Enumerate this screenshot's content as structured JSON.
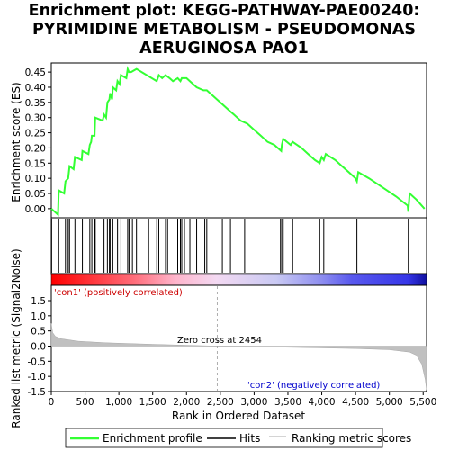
{
  "chart_data": {
    "type": "line",
    "title_lines": [
      "Enrichment plot: KEGG-PATHWAY-PAE00240:",
      "PYRIMIDINE METABOLISM - PSEUDOMONAS",
      "AERUGINOSA PAO1"
    ],
    "top_panel": {
      "ylabel": "Enrichment score (ES)",
      "ylim": [
        -0.03,
        0.48
      ],
      "yticks": [
        "0.45",
        "0.40",
        "0.35",
        "0.30",
        "0.25",
        "0.20",
        "0.15",
        "0.10",
        "0.05",
        "0.00"
      ],
      "ytick_values": [
        0.45,
        0.4,
        0.35,
        0.3,
        0.25,
        0.2,
        0.15,
        0.1,
        0.05,
        0.0
      ],
      "grid": false,
      "series": {
        "color": "#33ff33",
        "points": [
          [
            0,
            0.0
          ],
          [
            100,
            -0.02
          ],
          [
            110,
            0.06
          ],
          [
            190,
            0.05
          ],
          [
            210,
            0.09
          ],
          [
            250,
            0.1
          ],
          [
            270,
            0.14
          ],
          [
            330,
            0.13
          ],
          [
            350,
            0.17
          ],
          [
            450,
            0.16
          ],
          [
            460,
            0.19
          ],
          [
            550,
            0.18
          ],
          [
            570,
            0.21
          ],
          [
            590,
            0.22
          ],
          [
            600,
            0.24
          ],
          [
            640,
            0.24
          ],
          [
            650,
            0.3
          ],
          [
            760,
            0.29
          ],
          [
            780,
            0.31
          ],
          [
            810,
            0.3
          ],
          [
            830,
            0.35
          ],
          [
            860,
            0.36
          ],
          [
            870,
            0.38
          ],
          [
            900,
            0.36
          ],
          [
            910,
            0.4
          ],
          [
            960,
            0.39
          ],
          [
            980,
            0.42
          ],
          [
            1010,
            0.41
          ],
          [
            1030,
            0.44
          ],
          [
            1110,
            0.43
          ],
          [
            1130,
            0.46
          ],
          [
            1150,
            0.45
          ],
          [
            1180,
            0.45
          ],
          [
            1260,
            0.46
          ],
          [
            1560,
            0.42
          ],
          [
            1590,
            0.44
          ],
          [
            1640,
            0.43
          ],
          [
            1690,
            0.44
          ],
          [
            1750,
            0.43
          ],
          [
            1800,
            0.42
          ],
          [
            1870,
            0.43
          ],
          [
            1910,
            0.42
          ],
          [
            1930,
            0.43
          ],
          [
            2000,
            0.43
          ],
          [
            2050,
            0.42
          ],
          [
            2150,
            0.4
          ],
          [
            2250,
            0.39
          ],
          [
            2300,
            0.39
          ],
          [
            2450,
            0.36
          ],
          [
            2650,
            0.32
          ],
          [
            2700,
            0.31
          ],
          [
            2800,
            0.29
          ],
          [
            2900,
            0.28
          ],
          [
            3000,
            0.26
          ],
          [
            3100,
            0.24
          ],
          [
            3200,
            0.22
          ],
          [
            3300,
            0.21
          ],
          [
            3400,
            0.19
          ],
          [
            3410,
            0.21
          ],
          [
            3430,
            0.23
          ],
          [
            3540,
            0.21
          ],
          [
            3570,
            0.22
          ],
          [
            3700,
            0.2
          ],
          [
            3800,
            0.18
          ],
          [
            3900,
            0.16
          ],
          [
            3970,
            0.15
          ],
          [
            4000,
            0.17
          ],
          [
            4030,
            0.16
          ],
          [
            4060,
            0.18
          ],
          [
            4200,
            0.16
          ],
          [
            4300,
            0.14
          ],
          [
            4400,
            0.12
          ],
          [
            4500,
            0.1
          ],
          [
            4520,
            0.09
          ],
          [
            4540,
            0.12
          ],
          [
            4700,
            0.1
          ],
          [
            4900,
            0.07
          ],
          [
            5100,
            0.04
          ],
          [
            5270,
            0.01
          ],
          [
            5280,
            -0.01
          ],
          [
            5300,
            0.05
          ],
          [
            5400,
            0.03
          ],
          [
            5520,
            0.0
          ]
        ]
      }
    },
    "hits": [
      5,
      110,
      210,
      250,
      270,
      350,
      460,
      570,
      600,
      640,
      650,
      780,
      830,
      860,
      870,
      910,
      980,
      1030,
      1130,
      1150,
      1200,
      1260,
      1440,
      1560,
      1590,
      1690,
      1720,
      1870,
      1910,
      1930,
      1970,
      2050,
      2150,
      2270,
      2300,
      2530,
      2650,
      2860,
      3390,
      3410,
      3430,
      3570,
      3970,
      4030,
      4520,
      5280
    ],
    "rank_bar": {
      "left_label": "'con1' (positively correlated)",
      "right_label": "'con2' (negatively correlated)",
      "zero_cross_label": "Zero cross at 2454",
      "zero_cross": 2454
    },
    "bottom_panel": {
      "ylabel": "Ranked list metric (Signal2Noise)",
      "ylim": [
        -1.5,
        1.5
      ],
      "yticks": [
        "1.5",
        "1.0",
        "0.5",
        "0.0",
        "-0.5",
        "-1.0",
        "-1.5"
      ],
      "ytick_values": [
        1.5,
        1.0,
        0.5,
        0.0,
        -0.5,
        -1.0,
        -1.5
      ],
      "profile": [
        [
          0,
          0.75
        ],
        [
          20,
          0.45
        ],
        [
          60,
          0.32
        ],
        [
          150,
          0.24
        ],
        [
          400,
          0.16
        ],
        [
          800,
          0.11
        ],
        [
          1500,
          0.06
        ],
        [
          2454,
          0.0
        ],
        [
          3500,
          -0.04
        ],
        [
          4500,
          -0.08
        ],
        [
          5000,
          -0.12
        ],
        [
          5300,
          -0.2
        ],
        [
          5400,
          -0.3
        ],
        [
          5480,
          -0.6
        ],
        [
          5530,
          -1.1
        ],
        [
          5550,
          -1.45
        ]
      ]
    },
    "xlabel": "Rank in Ordered Dataset",
    "xlim": [
      0,
      5550
    ],
    "xticks": [
      "0",
      "500",
      "1,000",
      "1,500",
      "2,000",
      "2,500",
      "3,000",
      "3,500",
      "4,000",
      "4,500",
      "5,000",
      "5,500"
    ],
    "xtick_values": [
      0,
      500,
      1000,
      1500,
      2000,
      2500,
      3000,
      3500,
      4000,
      4500,
      5000,
      5500
    ],
    "legend": {
      "placement": "bottom",
      "items": [
        "Enrichment profile",
        "Hits",
        "Ranking metric scores"
      ]
    }
  }
}
